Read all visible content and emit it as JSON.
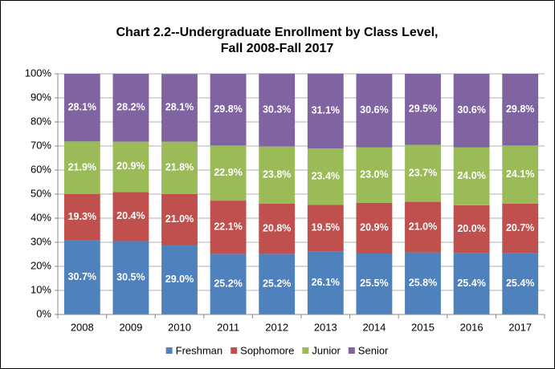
{
  "chart_data": {
    "type": "stacked_bar",
    "title": [
      "Chart 2.2--Undergraduate Enrollment by Class Level,",
      "Fall 2008-Fall 2017"
    ],
    "categories": [
      "2008",
      "2009",
      "2010",
      "2011",
      "2012",
      "2013",
      "2014",
      "2015",
      "2016",
      "2017"
    ],
    "series": [
      {
        "name": "Freshman",
        "color": "#4f81bd",
        "values": [
          30.7,
          30.5,
          29.0,
          25.2,
          25.2,
          26.1,
          25.5,
          25.8,
          25.4,
          25.4
        ],
        "value_labels": [
          "30.7%",
          "30.5%",
          "29.0%",
          "25.2%",
          "25.2%",
          "26.1%",
          "25.5%",
          "25.8%",
          "25.4%",
          "25.4%"
        ]
      },
      {
        "name": "Sophomore",
        "color": "#c0504d",
        "values": [
          19.3,
          20.4,
          21.0,
          22.1,
          20.8,
          19.5,
          20.9,
          21.0,
          20.0,
          20.7
        ],
        "value_labels": [
          "19.3%",
          "20.4%",
          "21.0%",
          "22.1%",
          "20.8%",
          "19.5%",
          "20.9%",
          "21.0%",
          "20.0%",
          "20.7%"
        ]
      },
      {
        "name": "Junior",
        "color": "#9bbb59",
        "values": [
          21.9,
          20.9,
          21.8,
          22.9,
          23.8,
          23.4,
          23.0,
          23.7,
          24.0,
          24.1
        ],
        "value_labels": [
          "21.9%",
          "20.9%",
          "21.8%",
          "22.9%",
          "23.8%",
          "23.4%",
          "23.0%",
          "23.7%",
          "24.0%",
          "24.1%"
        ]
      },
      {
        "name": "Senior",
        "color": "#8064a2",
        "values": [
          28.1,
          28.2,
          28.1,
          29.8,
          30.3,
          31.1,
          30.6,
          29.5,
          30.6,
          29.8
        ],
        "value_labels": [
          "28.1%",
          "28.2%",
          "28.1%",
          "29.8%",
          "30.3%",
          "31.1%",
          "30.6%",
          "29.5%",
          "30.6%",
          "29.8%"
        ]
      }
    ],
    "ylim": [
      0,
      100
    ],
    "yticks": [
      {
        "value": 0,
        "label": "0%"
      },
      {
        "value": 10,
        "label": "10%"
      },
      {
        "value": 20,
        "label": "20%"
      },
      {
        "value": 30,
        "label": "30%"
      },
      {
        "value": 40,
        "label": "40%"
      },
      {
        "value": 50,
        "label": "50%"
      },
      {
        "value": 60,
        "label": "60%"
      },
      {
        "value": 70,
        "label": "70%"
      },
      {
        "value": 80,
        "label": "80%"
      },
      {
        "value": 90,
        "label": "90%"
      },
      {
        "value": 100,
        "label": "100%"
      }
    ],
    "grid": true,
    "legend": "bottom"
  }
}
